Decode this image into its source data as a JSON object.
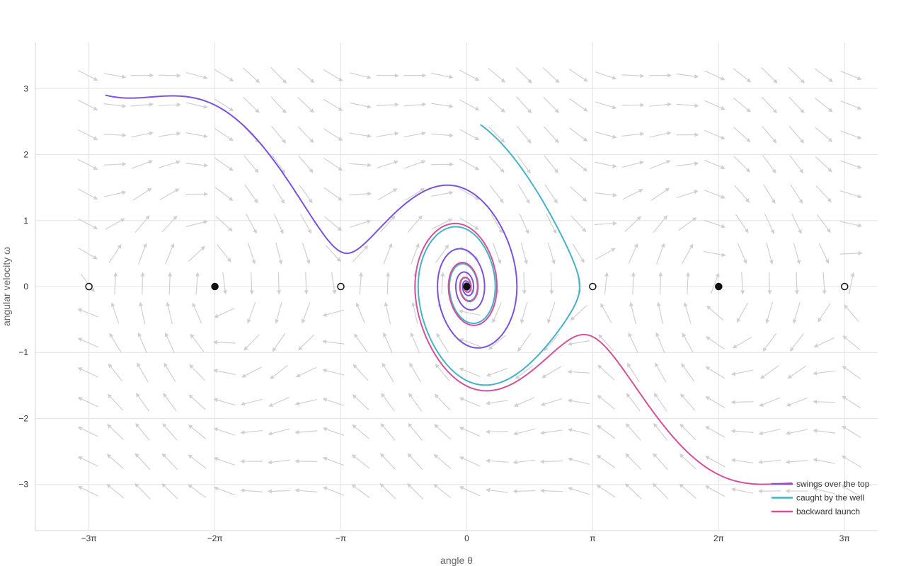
{
  "chart_data": {
    "type": "line",
    "title": "",
    "xlabel": "angle θ",
    "ylabel": "angular velocity ω",
    "xlim": [
      -10.76,
      10.25
    ],
    "ylim": [
      -3.7,
      3.7
    ],
    "grid": true,
    "legend_position": "bottom-right",
    "x_ticks": [
      {
        "value": -9.4248,
        "label": "−3π"
      },
      {
        "value": -6.2832,
        "label": "−2π"
      },
      {
        "value": -3.1416,
        "label": "−π"
      },
      {
        "value": 0,
        "label": "0"
      },
      {
        "value": 3.1416,
        "label": "π"
      },
      {
        "value": 6.2832,
        "label": "2π"
      },
      {
        "value": 9.4248,
        "label": "3π"
      }
    ],
    "y_ticks": [
      {
        "value": 3,
        "label": "3"
      },
      {
        "value": 2,
        "label": "2"
      },
      {
        "value": 1,
        "label": "1"
      },
      {
        "value": 0,
        "label": "0"
      },
      {
        "value": -1,
        "label": "−1"
      },
      {
        "value": -2,
        "label": "−2"
      },
      {
        "value": -3,
        "label": "−3"
      }
    ],
    "vector_field": {
      "color": "#d0d0d0",
      "x_range": [
        -9.45,
        9.7
      ],
      "x_step": 0.68,
      "y_values": [
        3.2,
        2.75,
        2.3,
        1.85,
        1.4,
        0.95,
        0.5,
        0.05,
        -0.4,
        -0.85,
        -1.3,
        -1.75,
        -2.2,
        -2.65,
        -3.1
      ],
      "damping": 0.3
    },
    "equilibria": [
      {
        "x": -9.4248,
        "y": 0,
        "kind": "unstable"
      },
      {
        "x": -6.2832,
        "y": 0,
        "kind": "stable"
      },
      {
        "x": -3.1416,
        "y": 0,
        "kind": "unstable"
      },
      {
        "x": 0,
        "y": 0,
        "kind": "stable"
      },
      {
        "x": 3.1416,
        "y": 0,
        "kind": "unstable"
      },
      {
        "x": 6.2832,
        "y": 0,
        "kind": "stable"
      },
      {
        "x": 9.4248,
        "y": 0,
        "kind": "unstable"
      }
    ],
    "series": [
      {
        "name": "swings over the top",
        "color": "#7b52de",
        "x0": -9.0,
        "y0": 2.9
      },
      {
        "name": "caught by the well",
        "color": "#45b2c8",
        "x0": 0.35,
        "y0": 2.45
      },
      {
        "name": "backward launch",
        "color": "#d5509a",
        "x0": 8.1,
        "y0": -2.98
      }
    ]
  }
}
